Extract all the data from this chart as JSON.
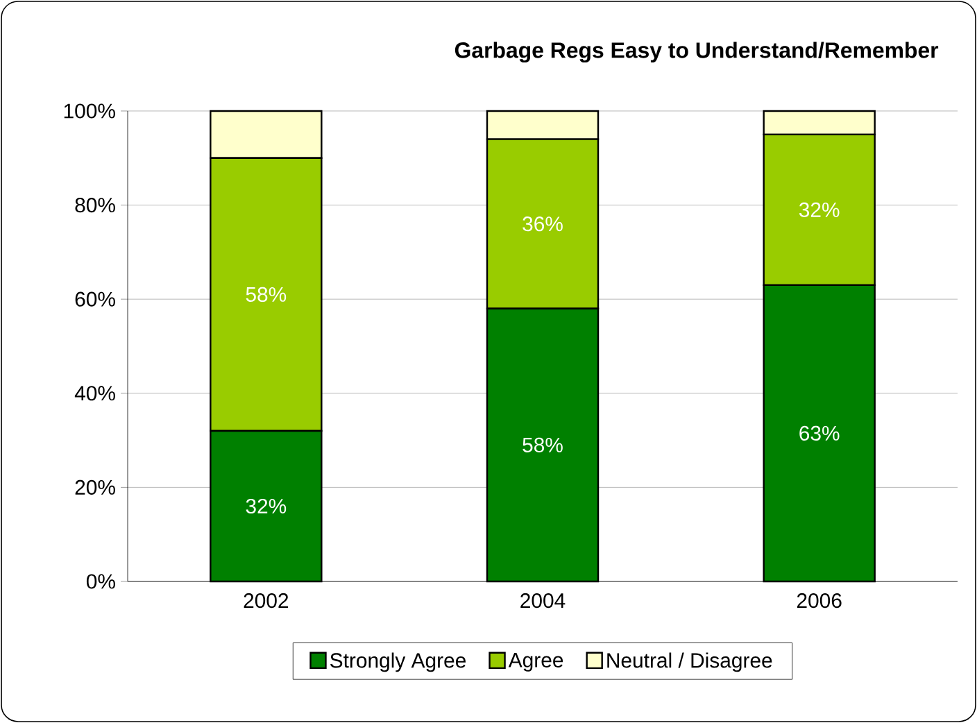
{
  "chart_data": {
    "type": "bar",
    "stacked": true,
    "title": "Garbage Regs Easy to Understand/Remember",
    "categories": [
      "2002",
      "2004",
      "2006"
    ],
    "series": [
      {
        "name": "Strongly Agree",
        "color": "#008000",
        "values": [
          32,
          58,
          63
        ],
        "value_labels": [
          "32%",
          "58%",
          "63%"
        ]
      },
      {
        "name": "Agree",
        "color": "#99cc00",
        "values": [
          58,
          36,
          32
        ],
        "value_labels": [
          "58%",
          "36%",
          "32%"
        ]
      },
      {
        "name": "Neutral / Disagree",
        "color": "#ffffcc",
        "values": [
          10,
          6,
          5
        ]
      }
    ],
    "ylim": [
      0,
      100
    ],
    "yticks": [
      {
        "value": 0,
        "label": "0%"
      },
      {
        "value": 20,
        "label": "20%"
      },
      {
        "value": 40,
        "label": "40%"
      },
      {
        "value": 60,
        "label": "60%"
      },
      {
        "value": 80,
        "label": "80%"
      },
      {
        "value": 100,
        "label": "100%"
      }
    ],
    "grid": "y",
    "legend": "bottom"
  }
}
